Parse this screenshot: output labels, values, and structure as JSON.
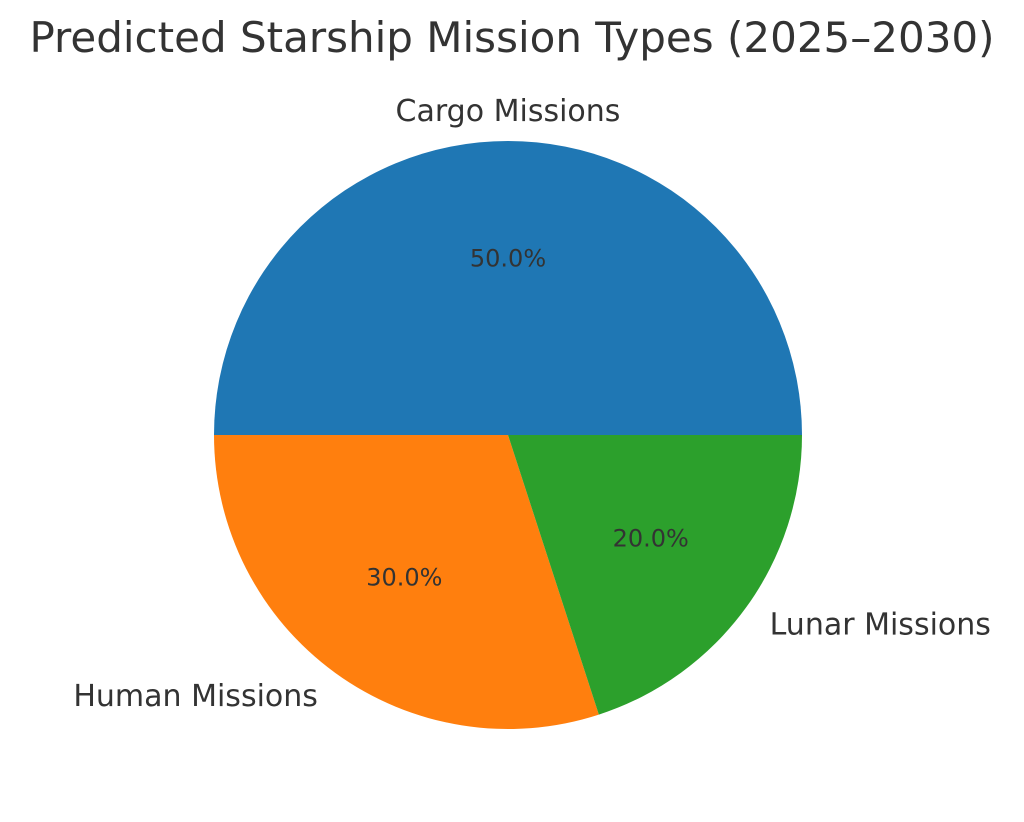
{
  "chart_data": {
    "type": "pie",
    "title": "Predicted Starship Mission Types (2025–2030)",
    "start_angle_deg": 0,
    "direction": "counterclockwise",
    "slices": [
      {
        "label": "Cargo Missions",
        "value": 50,
        "percent_label": "50.0%",
        "color": "#1f77b4"
      },
      {
        "label": "Human Missions",
        "value": 30,
        "percent_label": "30.0%",
        "color": "#ff7f0e"
      },
      {
        "label": "Lunar Missions",
        "value": 20,
        "percent_label": "20.0%",
        "color": "#2ca02c"
      }
    ]
  }
}
